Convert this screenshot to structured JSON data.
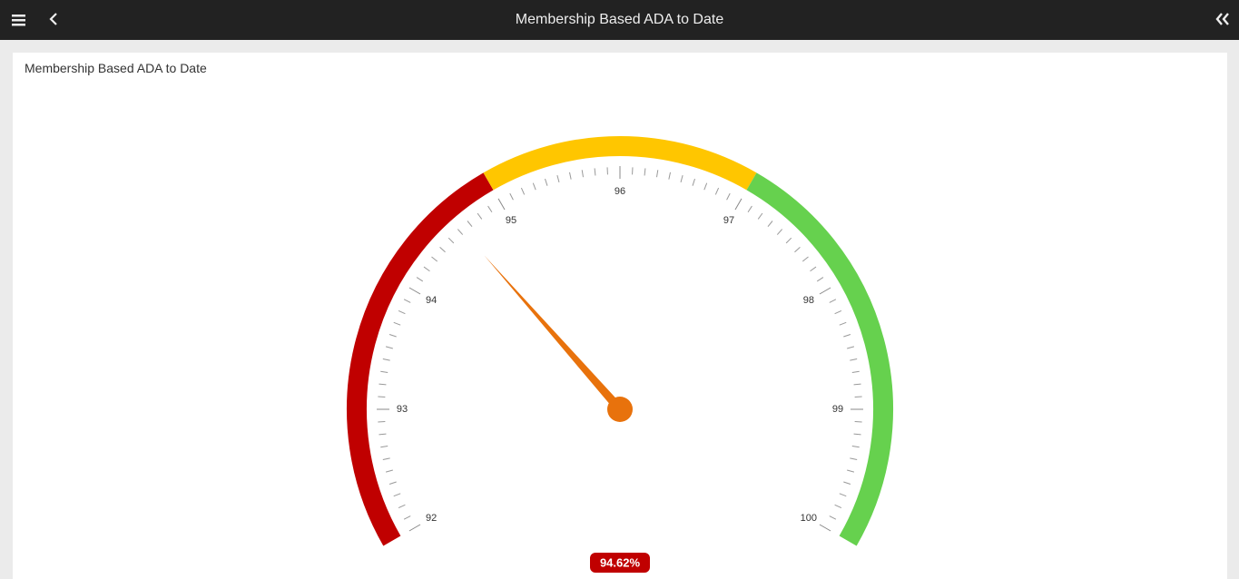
{
  "header": {
    "title": "Membership Based ADA to Date"
  },
  "chart_data": {
    "type": "gauge",
    "title": "Membership Based ADA to Date",
    "value": 94.62,
    "value_label": "94.62%",
    "ylim": [
      92,
      100
    ],
    "yticks": [
      92,
      93,
      94,
      95,
      96,
      97,
      98,
      99,
      100
    ],
    "minor_ticks_per_major": 10,
    "bands": [
      {
        "from": 92,
        "to": 95,
        "color": "#c00000"
      },
      {
        "from": 95,
        "to": 97,
        "color": "#ffc600"
      },
      {
        "from": 97,
        "to": 100,
        "color": "#66d14e"
      }
    ],
    "needle_color": "#e8720c",
    "label_color": "#c00000"
  }
}
